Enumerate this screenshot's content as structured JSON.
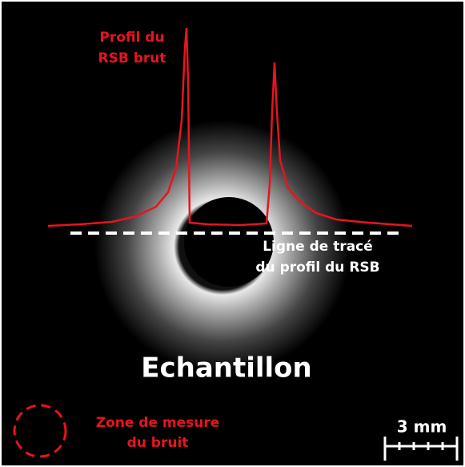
{
  "profile_label": [
    "Profil du",
    "RSB brut"
  ],
  "line_label": [
    "Ligne de tracé",
    "du profil du RSB"
  ],
  "sample_label": "Echantillon",
  "noise_label": [
    "Zone de mesure",
    "du bruit"
  ],
  "scale_bar": "3 mm"
}
